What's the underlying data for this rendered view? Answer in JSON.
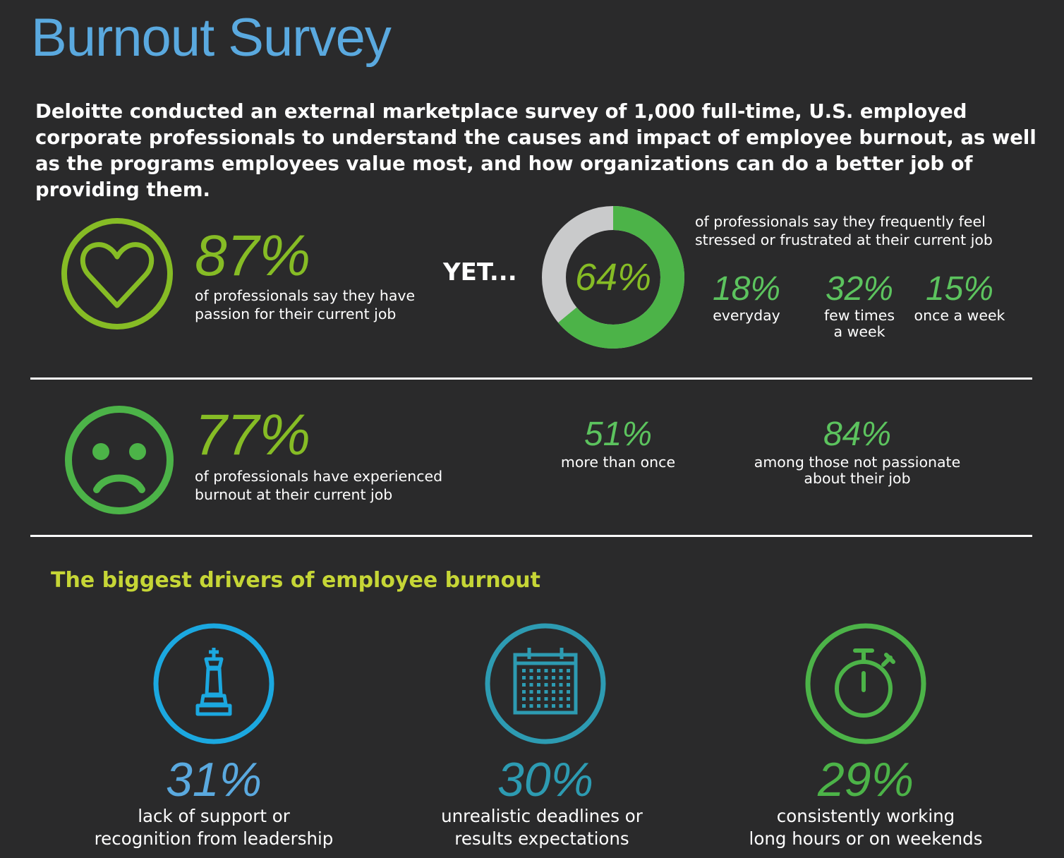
{
  "header": {
    "title": "Burnout Survey",
    "intro": "Deloitte conducted an external marketplace survey of 1,000 full-time, U.S. employed corporate professionals to understand the causes and impact of employee burnout, as well as the programs employees value most, and how organizations can do a better job of providing them."
  },
  "passion": {
    "icon": "heart-icon",
    "value": "87%",
    "desc_line1": "of professionals say they have",
    "desc_line2": "passion for their current job"
  },
  "yet_label": "YET...",
  "stress": {
    "donut_value": "64%",
    "desc_line1": "of professionals say they frequently feel",
    "desc_line2": "stressed or frustrated at their current job",
    "breakdown": [
      {
        "value": "18%",
        "label_line1": "everyday",
        "label_line2": ""
      },
      {
        "value": "32%",
        "label_line1": "few times",
        "label_line2": "a week"
      },
      {
        "value": "15%",
        "label_line1": "once a week",
        "label_line2": ""
      }
    ]
  },
  "burnout": {
    "icon": "sad-face-icon",
    "value": "77%",
    "desc_line1": "of professionals have experienced",
    "desc_line2": "burnout at their current job",
    "more_than_once_value": "51%",
    "more_than_once_label": "more than once",
    "not_passionate_value": "84%",
    "not_passionate_line1": "among those not passionate",
    "not_passionate_line2": "about their job"
  },
  "drivers": {
    "heading": "The biggest drivers of employee burnout",
    "items": [
      {
        "icon": "chess-king-icon",
        "value": "31%",
        "line1": "lack of support or",
        "line2": "recognition from leadership"
      },
      {
        "icon": "calendar-icon",
        "value": "30%",
        "line1": "unrealistic deadlines or",
        "line2": "results expectations"
      },
      {
        "icon": "stopwatch-icon",
        "value": "29%",
        "line1": "consistently working",
        "line2": "long hours or on weekends"
      }
    ]
  },
  "colors": {
    "background": "#2a2a2b",
    "title_blue": "#5aa9df",
    "light_green": "#86bc25",
    "green": "#4cb348",
    "heading_yellow_green": "#c6d636",
    "driver_blue": "#1ba8e0",
    "driver_teal": "#2d9bb2",
    "driver_green": "#4cb348",
    "donut_gray": "#c9cacb"
  }
}
